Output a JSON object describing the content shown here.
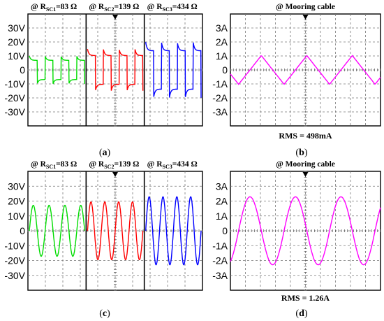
{
  "chart_data": [
    {
      "type": "line",
      "panel": "a",
      "caption": "a",
      "yticks": [
        "30V",
        "20V",
        "10V",
        "0",
        "-10V",
        "-20V",
        "-30V"
      ],
      "ylim": [
        -35,
        35
      ],
      "subplots": [
        {
          "title": "@ R",
          "sub": "SC1",
          "rest": "=83 Ω",
          "color": "#00dd00",
          "waveform": "square",
          "amplitude_V": 6,
          "cycles": 3.5
        },
        {
          "title": "@ R",
          "sub": "SC2",
          "rest": "=139 Ω",
          "color": "#ff0000",
          "waveform": "square",
          "amplitude_V": 9,
          "cycles": 3.5
        },
        {
          "title": "@ R",
          "sub": "SC3",
          "rest": "=434 Ω",
          "color": "#0000ff",
          "waveform": "square",
          "amplitude_V": 12,
          "cycles": 3.5
        }
      ]
    },
    {
      "type": "line",
      "panel": "b",
      "caption": "b",
      "title": "@ Mooring cable",
      "yticks": [
        "3A",
        "2A",
        "1A",
        "0",
        "-1A",
        "-2A",
        "-3A"
      ],
      "ylim": [
        -3.5,
        3.5
      ],
      "series": [
        {
          "color": "#ff00ff",
          "waveform": "triangle",
          "amplitude_A": 0.9,
          "cycles": 3.3
        }
      ],
      "annotation": "RMS = 498mA"
    },
    {
      "type": "line",
      "panel": "c",
      "caption": "c",
      "yticks": [
        "30V",
        "20V",
        "10V",
        "0",
        "-10V",
        "-20V",
        "-30V"
      ],
      "ylim": [
        -35,
        35
      ],
      "subplots": [
        {
          "title": "@ R",
          "sub": "SC1",
          "rest": "=83 Ω",
          "color": "#00dd00",
          "waveform": "sine",
          "amplitude_V": 15,
          "cycles": 3.5
        },
        {
          "title": "@ R",
          "sub": "SC2",
          "rest": "=139 Ω",
          "color": "#ff0000",
          "waveform": "sine",
          "amplitude_V": 17,
          "cycles": 4
        },
        {
          "title": "@ R",
          "sub": "SC3",
          "rest": "=434 Ω",
          "color": "#0000ff",
          "waveform": "sine",
          "amplitude_V": 20,
          "cycles": 4
        }
      ]
    },
    {
      "type": "line",
      "panel": "d",
      "caption": "d",
      "title": "@ Mooring cable",
      "yticks": [
        "3A",
        "2A",
        "1A",
        "0",
        "-1A",
        "-2A",
        "-3A"
      ],
      "ylim": [
        -3.5,
        3.5
      ],
      "series": [
        {
          "color": "#ff00ff",
          "waveform": "sine",
          "amplitude_A": 2.0,
          "cycles": 3.3
        }
      ],
      "annotation": "RMS = 1.26A"
    }
  ]
}
